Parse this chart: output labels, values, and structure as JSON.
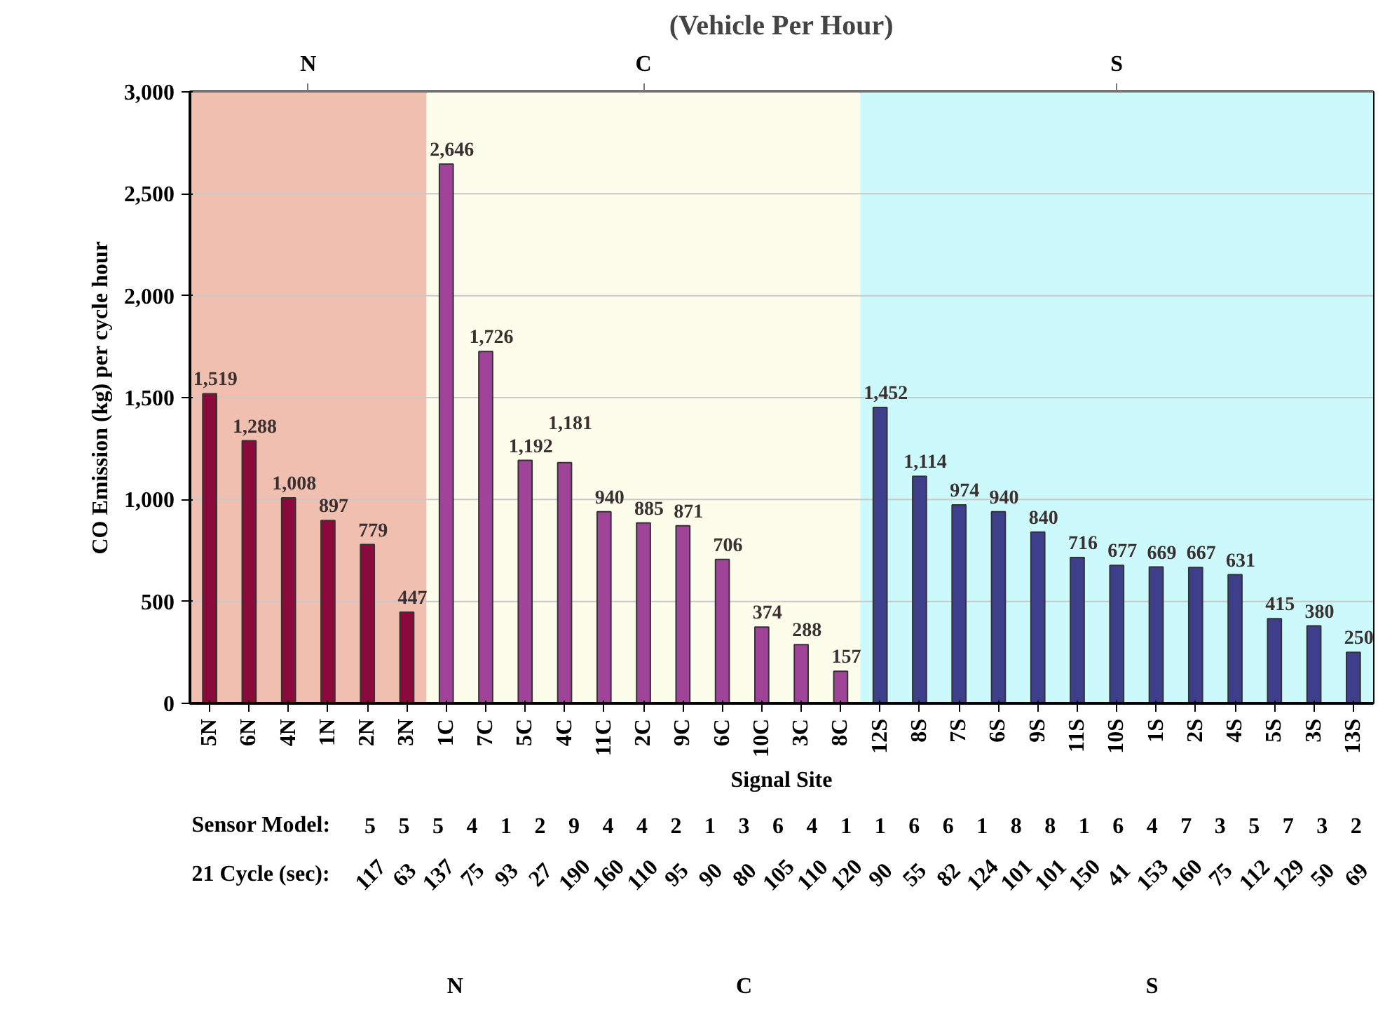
{
  "chart_data": {
    "type": "bar",
    "title": "(Vehicle Per Hour)",
    "xlabel": "Signal Site",
    "ylabel": "CO Emission (kg) per cycle hour",
    "categories": [
      "5N",
      "6N",
      "4N",
      "1N",
      "2N",
      "3N",
      "1C",
      "7C",
      "5C",
      "4C",
      "11C",
      "2C",
      "9C",
      "6C",
      "10C",
      "3C",
      "8C",
      "12S",
      "8S",
      "7S",
      "6S",
      "9S",
      "11S",
      "10S",
      "1S",
      "2S",
      "4S",
      "5S",
      "3S",
      "13S"
    ],
    "values": [
      1519,
      1288,
      1008,
      897,
      779,
      447,
      2646,
      1726,
      1192,
      1181,
      940,
      885,
      871,
      706,
      374,
      288,
      157,
      1452,
      1114,
      974,
      940,
      840,
      716,
      677,
      669,
      667,
      631,
      415,
      380,
      250
    ],
    "colors": [
      "#8b0a3c",
      "#8b0a3c",
      "#8b0a3c",
      "#8b0a3c",
      "#8b0a3c",
      "#8b0a3c",
      "#a0449a",
      "#a0449a",
      "#a0449a",
      "#a0449a",
      "#a0449a",
      "#a0449a",
      "#a0449a",
      "#a0449a",
      "#a0449a",
      "#a0449a",
      "#a0449a",
      "#3d3f8a",
      "#3d3f8a",
      "#3d3f8a",
      "#3d3f8a",
      "#3d3f8a",
      "#3d3f8a",
      "#3d3f8a",
      "#3d3f8a",
      "#3d3f8a",
      "#3d3f8a",
      "#3d3f8a",
      "#3d3f8a",
      "#3d3f8a"
    ],
    "value_labels": [
      "1,519",
      "1,288",
      "1,008",
      "897",
      "779",
      "447",
      "2,646",
      "1,726",
      "1,192",
      "1,181",
      "940",
      "885",
      "871",
      "706",
      "374",
      "288",
      "157",
      "1,452",
      "1,114",
      "974",
      "940",
      "840",
      "716",
      "677",
      "669",
      "667",
      "631",
      "415",
      "380",
      "250"
    ],
    "ylim": [
      0,
      3000
    ],
    "yticks": [
      {
        "value": 0,
        "label": "0"
      },
      {
        "value": 500,
        "label": "500"
      },
      {
        "value": 1000,
        "label": "1,000"
      },
      {
        "value": 1500,
        "label": "1,500"
      },
      {
        "value": 2000,
        "label": "2,000"
      },
      {
        "value": 2500,
        "label": "2,500"
      },
      {
        "value": 3000,
        "label": "3,000"
      }
    ],
    "grid": "y",
    "bands": [
      {
        "axis": "x",
        "from": "5N",
        "to": "3N",
        "label": "N",
        "color": "#f0bfb0"
      },
      {
        "axis": "x",
        "from": "1C",
        "to": "8C",
        "label": "C",
        "color": "#fdfdec"
      },
      {
        "axis": "x",
        "from": "12S",
        "to": "13S",
        "label": "S",
        "color": "#ccf9fb"
      }
    ],
    "annotations": [
      "Sensor Model:",
      "5 5 5 4 1 2 9 4 4 2 1 3 6 4 1 1 6 6 1 8 8 1 6 4 7 3 5 7 3 2",
      "21 Cycle (sec):",
      "117 63 137 75 93 27 190 160 110 95 90 80 105 110 120 90 55 82 124 101 101 150 41 153 160 75 112 129 50 69",
      "N",
      "C",
      "S"
    ]
  }
}
